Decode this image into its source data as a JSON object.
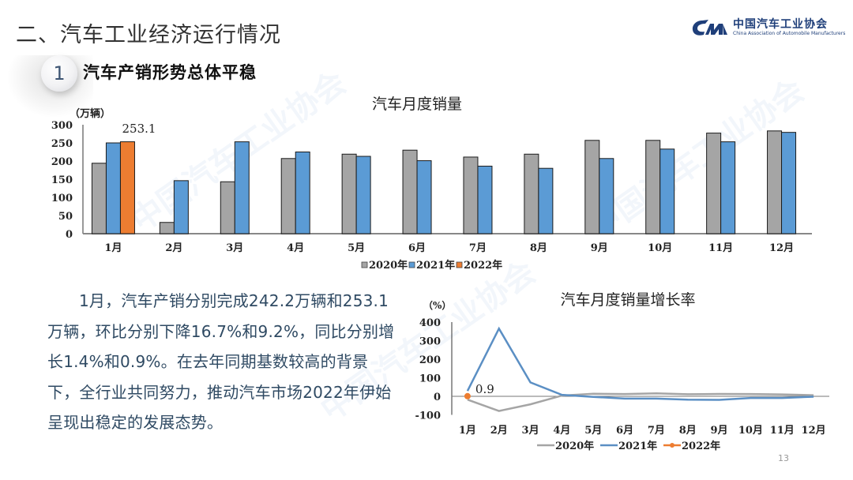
{
  "header": {
    "section_title": "二、汽车工业经济运行情况",
    "logo": {
      "name_cn": "中国汽车工业协会",
      "name_en": "China Association of Automobile Manufacturers",
      "mark_text": "CM"
    }
  },
  "subsection": {
    "number": "1",
    "title": "汽车产销形势总体平稳"
  },
  "paragraph": "1月，汽车产销分别完成242.2万辆和253.1万辆，环比分别下降16.7%和9.2%，同比分别增长1.4%和0.9%。在去年同期基数较高的背景下，全行业共同努力，推动汽车市场2022年伊始呈现出稳定的发展态势。",
  "page_number": "13",
  "colors": {
    "series_2020": "#a5a5a5",
    "series_2021": "#5b9bd5",
    "series_2022": "#ed7d31",
    "line_2020": "#a5a5a5",
    "line_2021": "#5b8fc4",
    "text_body": "#2f4a63"
  },
  "chart_data": [
    {
      "type": "bar",
      "title": "汽车月度销量",
      "ylabel": "（万辆）",
      "xlabel": "",
      "ylim": [
        0,
        300
      ],
      "yticks": [
        "0",
        "50",
        "100",
        "150",
        "200",
        "250",
        "300"
      ],
      "categories": [
        "1月",
        "2月",
        "3月",
        "4月",
        "5月",
        "6月",
        "7月",
        "8月",
        "9月",
        "10月",
        "11月",
        "12月"
      ],
      "series": [
        {
          "name": "2020年",
          "values": [
            194,
            31,
            143,
            207,
            219,
            230,
            211,
            219,
            257,
            257,
            277,
            283
          ]
        },
        {
          "name": "2021年",
          "values": [
            250,
            146,
            253,
            225,
            213,
            201,
            186,
            180,
            207,
            233,
            253,
            279
          ]
        },
        {
          "name": "2022年",
          "values": [
            253.1,
            null,
            null,
            null,
            null,
            null,
            null,
            null,
            null,
            null,
            null,
            null
          ]
        }
      ],
      "annotations": [
        {
          "text": "253.1",
          "category": "1月",
          "series": "2022年"
        }
      ],
      "legend": [
        "2020年",
        "2021年",
        "2022年"
      ],
      "legend_position": "bottom",
      "grid": false
    },
    {
      "type": "line",
      "title": "汽车月度销量增长率",
      "ylabel": "（%）",
      "xlabel": "",
      "ylim": [
        -100,
        400
      ],
      "yticks": [
        "-100",
        "0",
        "100",
        "200",
        "300",
        "400"
      ],
      "categories": [
        "1月",
        "2月",
        "3月",
        "4月",
        "5月",
        "6月",
        "7月",
        "8月",
        "9月",
        "10月",
        "11月",
        "12月"
      ],
      "series": [
        {
          "name": "2020年",
          "values": [
            -18,
            -79,
            -43,
            4,
            14,
            12,
            16,
            11,
            13,
            12,
            10,
            6
          ]
        },
        {
          "name": "2021年",
          "values": [
            29,
            365,
            75,
            8,
            -3,
            -12,
            -12,
            -18,
            -19,
            -9,
            -9,
            -2
          ]
        },
        {
          "name": "2022年",
          "values": [
            0.9,
            null,
            null,
            null,
            null,
            null,
            null,
            null,
            null,
            null,
            null,
            null
          ]
        }
      ],
      "annotations": [
        {
          "text": "0.9",
          "category": "1月",
          "series": "2022年"
        }
      ],
      "legend": [
        "2020年",
        "2021年",
        "2022年"
      ],
      "legend_position": "bottom",
      "grid": false
    }
  ]
}
